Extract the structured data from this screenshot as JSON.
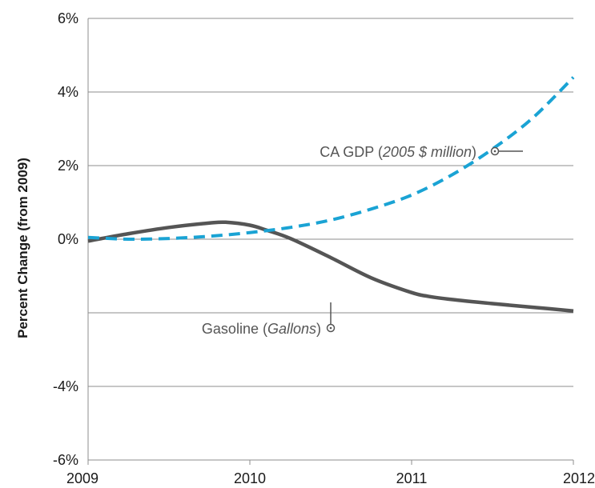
{
  "chart_data": {
    "type": "line",
    "title": "",
    "xlabel": "",
    "ylabel": "Percent Change (from 2009)",
    "xlim": [
      2009,
      2012
    ],
    "ylim": [
      -6,
      6
    ],
    "x_ticks": [
      2009,
      2010,
      2011,
      2012
    ],
    "y_ticks": [
      -6,
      -4,
      -2,
      0,
      2,
      4,
      6
    ],
    "y_tick_labels": [
      "-6%",
      "-4%",
      "",
      "0%",
      "2%",
      "4%",
      "6%"
    ],
    "grid": true,
    "legend": "none (series labelled by inline annotations)",
    "series": [
      {
        "name": "CA GDP (2005 $ million)",
        "label_plain": "CA GDP (",
        "label_italic": "2005 $ million",
        "label_close": ")",
        "style": "dashed",
        "color": "#1aa3d4",
        "x": [
          2009.0,
          2009.25,
          2009.5,
          2009.75,
          2010.0,
          2010.25,
          2010.5,
          2010.75,
          2011.0,
          2011.25,
          2011.5,
          2011.75,
          2012.0
        ],
        "y": [
          0.05,
          0.0,
          0.02,
          0.08,
          0.18,
          0.32,
          0.52,
          0.82,
          1.2,
          1.75,
          2.45,
          3.3,
          4.4
        ]
      },
      {
        "name": "Gasoline (Gallons)",
        "label_plain": "Gasoline (",
        "label_italic": "Gallons",
        "label_close": ")",
        "style": "solid",
        "color": "#555555",
        "x": [
          2009.0,
          2009.25,
          2009.5,
          2009.75,
          2009.85,
          2010.0,
          2010.1,
          2010.25,
          2010.5,
          2010.75,
          2011.0,
          2011.1,
          2011.25,
          2011.5,
          2011.75,
          2012.0
        ],
        "y": [
          -0.05,
          0.15,
          0.32,
          0.44,
          0.46,
          0.38,
          0.25,
          0.02,
          -0.5,
          -1.05,
          -1.45,
          -1.55,
          -1.64,
          -1.75,
          -1.85,
          -1.95
        ]
      }
    ]
  }
}
